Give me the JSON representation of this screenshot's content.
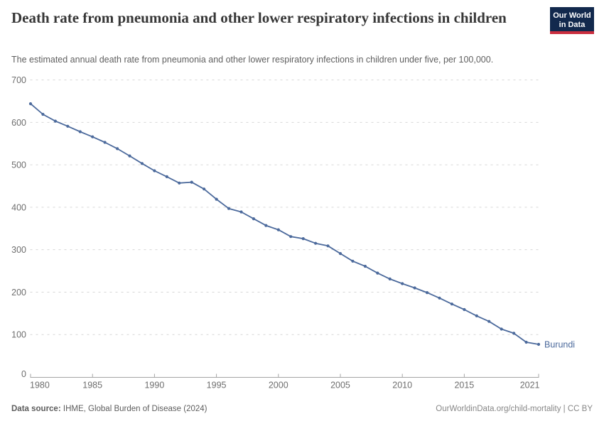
{
  "header": {
    "title": "Death rate from pneumonia and other lower respiratory infections in children",
    "subtitle": "The estimated annual death rate from pneumonia and other lower respiratory infections in children under five, per 100,000.",
    "logo": {
      "line1": "Our World",
      "line2": "in Data"
    }
  },
  "chart_data": {
    "type": "line",
    "title": "Death rate from pneumonia and other lower respiratory infections in children",
    "entity": "Burundi",
    "unit": "deaths per 100,000 children under five",
    "x": [
      1980,
      1981,
      1982,
      1983,
      1984,
      1985,
      1986,
      1987,
      1988,
      1989,
      1990,
      1991,
      1992,
      1993,
      1994,
      1995,
      1996,
      1997,
      1998,
      1999,
      2000,
      2001,
      2002,
      2003,
      2004,
      2005,
      2006,
      2007,
      2008,
      2009,
      2010,
      2011,
      2012,
      2013,
      2014,
      2015,
      2016,
      2017,
      2018,
      2019,
      2020,
      2021
    ],
    "series": [
      {
        "name": "Burundi",
        "color": "#4c6a9c",
        "values": [
          644,
          619,
          603,
          591,
          578,
          566,
          553,
          538,
          521,
          503,
          486,
          472,
          457,
          459,
          443,
          419,
          397,
          389,
          373,
          357,
          347,
          331,
          326,
          315,
          309,
          291,
          273,
          261,
          245,
          231,
          220,
          210,
          199,
          186,
          172,
          159,
          144,
          131,
          113,
          103,
          82,
          77
        ]
      }
    ],
    "x_ticks": [
      1980,
      1985,
      1990,
      1995,
      2000,
      2005,
      2010,
      2015,
      2021
    ],
    "y_ticks": [
      0,
      100,
      200,
      300,
      400,
      500,
      600,
      700
    ],
    "xlim": [
      1980,
      2021
    ],
    "ylim": [
      0,
      700
    ],
    "grid": "horizontal-dashed",
    "legend_position": "end-of-line"
  },
  "footer": {
    "source_label": "Data source:",
    "source_text": "IHME, Global Burden of Disease (2024)",
    "attribution": "OurWorldinData.org/child-mortality | CC BY"
  },
  "colors": {
    "series": "#4c6a9c",
    "logo_bg": "#12294d",
    "logo_stripe": "#cb2e3f",
    "grid": "#d6d6d6",
    "axis": "#a5a5a5",
    "tick_label": "#6e6e6e"
  }
}
